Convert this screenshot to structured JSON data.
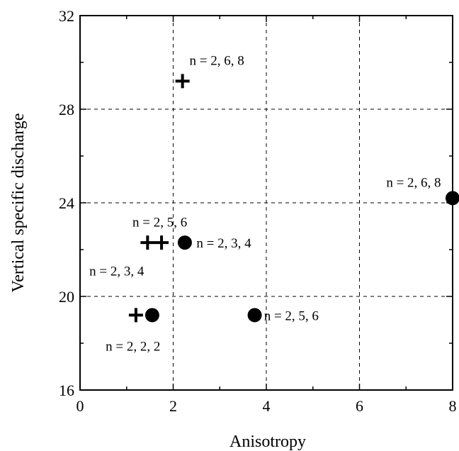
{
  "chart_data": {
    "type": "scatter",
    "title": "",
    "xlabel": "Anisotropy",
    "ylabel": "Vertical specific discharge",
    "xlim": [
      0,
      8
    ],
    "ylim": [
      16,
      32
    ],
    "xticks": [
      0,
      2,
      4,
      6,
      8
    ],
    "yticks": [
      16,
      20,
      24,
      28,
      32
    ],
    "grid": true,
    "series": [
      {
        "marker": "plus",
        "points": [
          {
            "x": 2.2,
            "y": 29.2
          },
          {
            "x": 1.45,
            "y": 22.3
          },
          {
            "x": 1.75,
            "y": 22.3
          },
          {
            "x": 1.2,
            "y": 19.2
          }
        ]
      },
      {
        "marker": "circle",
        "points": [
          {
            "x": 8.0,
            "y": 24.2
          },
          {
            "x": 2.25,
            "y": 22.3
          },
          {
            "x": 3.75,
            "y": 19.2
          },
          {
            "x": 1.55,
            "y": 19.2
          }
        ]
      }
    ],
    "annotations": [
      {
        "text": "n = 2, 6, 8",
        "x": 2.35,
        "y": 30.1,
        "anchor": "start"
      },
      {
        "text": "n = 2, 6, 8",
        "x": 7.75,
        "y": 24.9,
        "anchor": "end"
      },
      {
        "text": "n = 2, 5, 6",
        "x": 2.3,
        "y": 23.2,
        "anchor": "end"
      },
      {
        "text": "n = 2, 3, 4",
        "x": 2.5,
        "y": 22.3,
        "anchor": "start"
      },
      {
        "text": "n = 2, 3, 4",
        "x": 0.2,
        "y": 21.1,
        "anchor": "start"
      },
      {
        "text": "n = 2, 5, 6",
        "x": 3.95,
        "y": 19.2,
        "anchor": "start"
      },
      {
        "text": "n = 2, 2, 2",
        "x": 0.55,
        "y": 17.9,
        "anchor": "start"
      }
    ]
  }
}
